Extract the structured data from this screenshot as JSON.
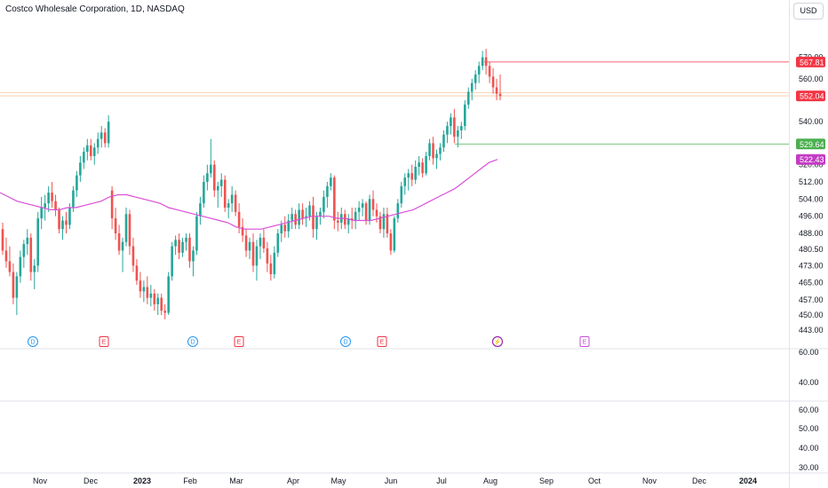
{
  "header": {
    "title": "Costco Wholesale Corporation, 1D, NASDAQ",
    "currency": "USD"
  },
  "colors": {
    "up": "#26a69a",
    "down": "#ef5350",
    "ma": "#d94fd6",
    "support": "#4caf50",
    "resistance": "#f23645",
    "dividend": "#2196f3",
    "earnings_past": "#f23645",
    "earnings_next": "#c34fd6",
    "grid": "#f0f3fa",
    "axis_text": "#131722"
  },
  "price_axis": {
    "ticks": [
      "443.00",
      "450.00",
      "457.00",
      "465.00",
      "473.00",
      "480.50",
      "488.00",
      "496.00",
      "504.00",
      "512.00",
      "520.00",
      "529.64",
      "540.00",
      "552.04",
      "560.00",
      "567.81",
      "570.00"
    ]
  },
  "lower_axes": {
    "pane1": [
      "60.00",
      "40.00"
    ],
    "pane2": [
      "60.00",
      "50.00",
      "40.00",
      "30.00"
    ]
  },
  "price_tags": [
    {
      "value": "567.81",
      "color": "#f23645"
    },
    {
      "value": "552.04",
      "color": "#f23645"
    },
    {
      "value": "529.64",
      "color": "#4caf50"
    },
    {
      "value": "522.43",
      "color": "#c33bc4"
    }
  ],
  "time_axis": [
    "Nov",
    "Dec",
    "2023",
    "Feb",
    "Mar",
    "Apr",
    "May",
    "Jun",
    "Jul",
    "Aug",
    "Sep",
    "Oct",
    "Nov",
    "Dec",
    "2024"
  ],
  "events": [
    {
      "label": "D",
      "type": "dividend"
    },
    {
      "label": "E",
      "type": "earnings"
    },
    {
      "label": "D",
      "type": "dividend"
    },
    {
      "label": "E",
      "type": "earnings"
    },
    {
      "label": "D",
      "type": "dividend"
    },
    {
      "label": "E",
      "type": "earnings"
    },
    {
      "label": "⚡",
      "type": "split"
    },
    {
      "label": "E",
      "type": "earnings-next"
    }
  ],
  "chart_data": {
    "type": "candlestick",
    "title": "Costco Wholesale Corporation, 1D, NASDAQ",
    "ylim": [
      440,
      575
    ],
    "series": [
      {
        "kind": "ohlc",
        "values": [
          [
            490,
            493,
            478,
            480
          ],
          [
            480,
            486,
            472,
            475
          ],
          [
            475,
            482,
            468,
            470
          ],
          [
            470,
            474,
            455,
            458
          ],
          [
            458,
            470,
            450,
            468
          ],
          [
            468,
            480,
            465,
            477
          ],
          [
            477,
            485,
            472,
            483
          ],
          [
            483,
            490,
            478,
            486
          ],
          [
            486,
            488,
            466,
            470
          ],
          [
            470,
            476,
            462,
            473
          ],
          [
            473,
            498,
            470,
            495
          ],
          [
            495,
            505,
            490,
            500
          ],
          [
            500,
            506,
            494,
            502
          ],
          [
            502,
            510,
            498,
            507
          ],
          [
            507,
            512,
            500,
            503
          ],
          [
            503,
            506,
            496,
            499
          ],
          [
            499,
            500,
            488,
            490
          ],
          [
            490,
            496,
            485,
            494
          ],
          [
            494,
            498,
            488,
            492
          ],
          [
            492,
            502,
            490,
            500
          ],
          [
            500,
            510,
            498,
            508
          ],
          [
            508,
            517,
            505,
            515
          ],
          [
            515,
            524,
            512,
            521
          ],
          [
            521,
            528,
            518,
            526
          ],
          [
            526,
            532,
            522,
            529
          ],
          [
            529,
            532,
            522,
            524
          ],
          [
            524,
            530,
            520,
            528
          ],
          [
            528,
            535,
            525,
            532
          ],
          [
            532,
            538,
            528,
            535
          ],
          [
            535,
            537,
            528,
            530
          ],
          [
            530,
            543,
            528,
            540
          ],
          [
            508,
            510,
            490,
            495
          ],
          [
            495,
            500,
            485,
            488
          ],
          [
            488,
            492,
            478,
            480
          ],
          [
            480,
            486,
            470,
            484
          ],
          [
            484,
            500,
            482,
            497
          ],
          [
            497,
            499,
            478,
            482
          ],
          [
            482,
            486,
            470,
            473
          ],
          [
            473,
            476,
            464,
            466
          ],
          [
            466,
            470,
            458,
            461
          ],
          [
            461,
            466,
            456,
            463
          ],
          [
            463,
            468,
            455,
            458
          ],
          [
            458,
            464,
            454,
            460
          ],
          [
            460,
            462,
            452,
            455
          ],
          [
            455,
            460,
            450,
            458
          ],
          [
            458,
            460,
            450,
            452
          ],
          [
            452,
            455,
            448,
            451
          ],
          [
            451,
            470,
            450,
            468
          ],
          [
            468,
            484,
            466,
            482
          ],
          [
            482,
            487,
            478,
            485
          ],
          [
            485,
            488,
            476,
            479
          ],
          [
            479,
            486,
            477,
            484
          ],
          [
            484,
            488,
            480,
            486
          ],
          [
            486,
            488,
            472,
            475
          ],
          [
            475,
            482,
            468,
            480
          ],
          [
            480,
            498,
            478,
            496
          ],
          [
            496,
            505,
            492,
            502
          ],
          [
            502,
            515,
            500,
            512
          ],
          [
            512,
            520,
            508,
            516
          ],
          [
            516,
            532,
            514,
            520
          ],
          [
            520,
            522,
            505,
            508
          ],
          [
            508,
            512,
            500,
            510
          ],
          [
            510,
            516,
            505,
            513
          ],
          [
            513,
            515,
            498,
            500
          ],
          [
            500,
            504,
            495,
            502
          ],
          [
            502,
            510,
            498,
            506
          ],
          [
            506,
            508,
            496,
            498
          ],
          [
            498,
            502,
            488,
            491
          ],
          [
            491,
            495,
            484,
            487
          ],
          [
            487,
            490,
            477,
            480
          ],
          [
            480,
            486,
            476,
            484
          ],
          [
            484,
            488,
            470,
            473
          ],
          [
            473,
            485,
            466,
            482
          ],
          [
            482,
            488,
            476,
            486
          ],
          [
            486,
            490,
            479,
            481
          ],
          [
            481,
            484,
            470,
            474
          ],
          [
            474,
            478,
            466,
            469
          ],
          [
            469,
            482,
            467,
            479
          ],
          [
            479,
            490,
            477,
            488
          ],
          [
            488,
            494,
            484,
            492
          ],
          [
            492,
            496,
            486,
            489
          ],
          [
            489,
            497,
            486,
            494
          ],
          [
            494,
            500,
            490,
            497
          ],
          [
            497,
            499,
            490,
            492
          ],
          [
            492,
            502,
            490,
            499
          ],
          [
            499,
            502,
            492,
            495
          ],
          [
            495,
            500,
            491,
            496
          ],
          [
            496,
            503,
            494,
            501
          ],
          [
            501,
            505,
            486,
            490
          ],
          [
            490,
            498,
            485,
            496
          ],
          [
            496,
            500,
            492,
            498
          ],
          [
            498,
            508,
            495,
            505
          ],
          [
            505,
            512,
            500,
            510
          ],
          [
            510,
            516,
            508,
            514
          ],
          [
            514,
            515,
            490,
            494
          ],
          [
            494,
            498,
            489,
            493
          ],
          [
            493,
            500,
            490,
            497
          ],
          [
            497,
            499,
            490,
            492
          ],
          [
            492,
            497,
            488,
            495
          ],
          [
            495,
            500,
            490,
            494
          ],
          [
            494,
            500,
            490,
            498
          ],
          [
            498,
            503,
            494,
            500
          ],
          [
            500,
            504,
            496,
            502
          ],
          [
            502,
            503,
            492,
            494
          ],
          [
            494,
            506,
            492,
            504
          ],
          [
            504,
            508,
            496,
            499
          ],
          [
            499,
            502,
            493,
            496
          ],
          [
            496,
            498,
            488,
            490
          ],
          [
            490,
            500,
            486,
            497
          ],
          [
            497,
            500,
            486,
            488
          ],
          [
            488,
            490,
            478,
            480
          ],
          [
            480,
            496,
            479,
            495
          ],
          [
            495,
            504,
            493,
            502
          ],
          [
            502,
            512,
            500,
            510
          ],
          [
            510,
            516,
            506,
            514
          ],
          [
            514,
            518,
            508,
            516
          ],
          [
            516,
            520,
            510,
            513
          ],
          [
            513,
            522,
            511,
            519
          ],
          [
            519,
            524,
            515,
            521
          ],
          [
            521,
            523,
            514,
            516
          ],
          [
            516,
            526,
            515,
            524
          ],
          [
            524,
            532,
            522,
            530
          ],
          [
            530,
            533,
            520,
            523
          ],
          [
            523,
            527,
            518,
            525
          ],
          [
            525,
            530,
            522,
            528
          ],
          [
            528,
            536,
            526,
            534
          ],
          [
            534,
            540,
            530,
            538
          ],
          [
            538,
            544,
            534,
            542
          ],
          [
            542,
            546,
            530,
            533
          ],
          [
            533,
            538,
            528,
            536
          ],
          [
            536,
            540,
            532,
            538
          ],
          [
            538,
            550,
            536,
            548
          ],
          [
            548,
            556,
            546,
            554
          ],
          [
            554,
            560,
            550,
            558
          ],
          [
            558,
            564,
            555,
            562
          ],
          [
            562,
            568,
            558,
            566
          ],
          [
            566,
            573,
            564,
            570
          ],
          [
            570,
            574,
            562,
            566
          ],
          [
            566,
            568,
            558,
            561
          ],
          [
            561,
            565,
            553,
            556
          ],
          [
            556,
            560,
            550,
            553
          ],
          [
            553,
            562,
            550,
            552
          ]
        ]
      },
      {
        "name": "",
        "kind": "line",
        "values": [
          507,
          505,
          503,
          502,
          501,
          500,
          499,
          499,
          500,
          500,
          501,
          502,
          503,
          505,
          506,
          506,
          505,
          504,
          503,
          502,
          500,
          499,
          498,
          497,
          496,
          495,
          494,
          493,
          491,
          490,
          490,
          490,
          491,
          492,
          493,
          494,
          495,
          496,
          496,
          496,
          495,
          495,
          494,
          494,
          494,
          495,
          496,
          497,
          498,
          499,
          501,
          503,
          505,
          507,
          509,
          512,
          515,
          518,
          521,
          522.43
        ]
      }
    ]
  }
}
